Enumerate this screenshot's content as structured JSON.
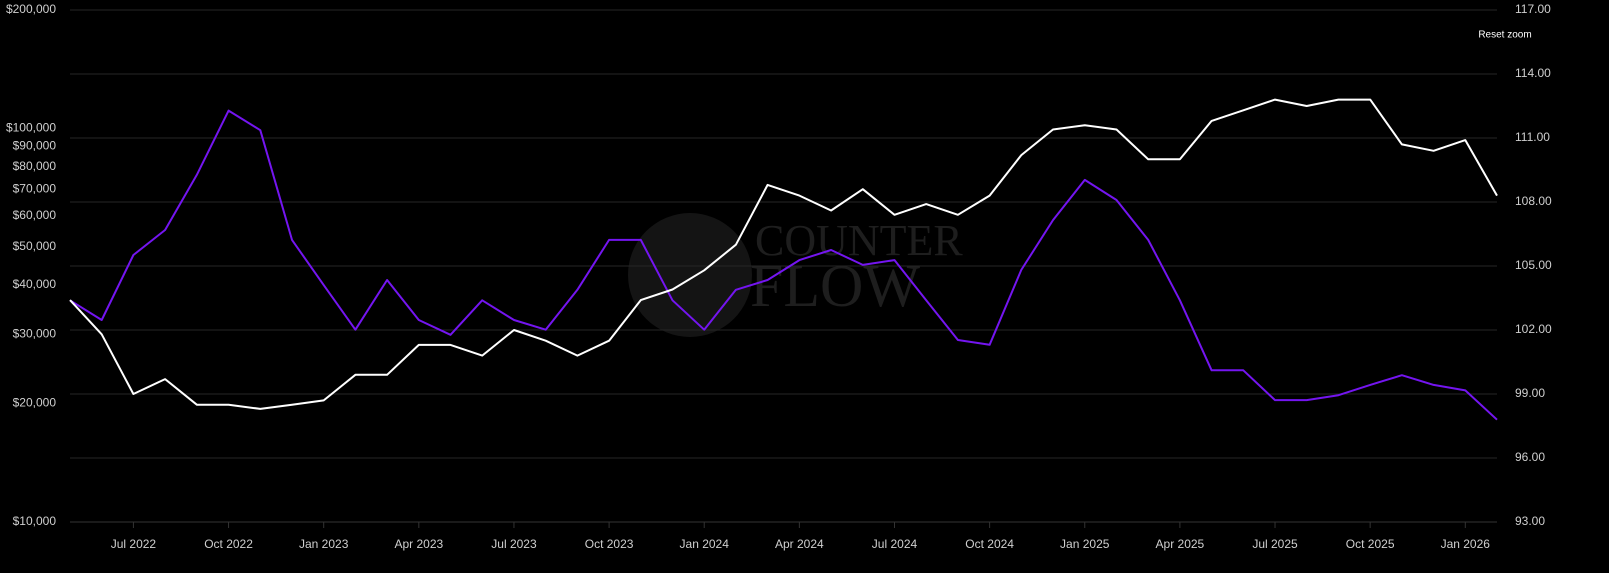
{
  "chart_data": {
    "type": "line",
    "x": [
      "2022-05",
      "2022-06",
      "2022-07",
      "2022-08",
      "2022-09",
      "2022-10",
      "2022-11",
      "2022-12",
      "2023-01",
      "2023-02",
      "2023-03",
      "2023-04",
      "2023-05",
      "2023-06",
      "2023-07",
      "2023-08",
      "2023-09",
      "2023-10",
      "2023-11",
      "2023-12",
      "2024-01",
      "2024-02",
      "2024-03",
      "2024-04",
      "2024-05",
      "2024-06",
      "2024-07",
      "2024-08",
      "2024-09",
      "2024-10",
      "2024-11",
      "2024-12",
      "2025-01",
      "2025-02",
      "2025-03",
      "2025-04",
      "2025-05",
      "2025-06",
      "2025-07",
      "2025-08",
      "2025-09",
      "2025-10",
      "2025-11",
      "2025-12",
      "2026-01",
      "2026-02"
    ],
    "xlim": [
      "2022-05",
      "2026-02"
    ],
    "xticks": [
      {
        "value": "2022-07",
        "label": "Jul 2022"
      },
      {
        "value": "2022-10",
        "label": "Oct 2022"
      },
      {
        "value": "2023-01",
        "label": "Jan 2023"
      },
      {
        "value": "2023-04",
        "label": "Apr 2023"
      },
      {
        "value": "2023-07",
        "label": "Jul 2023"
      },
      {
        "value": "2023-10",
        "label": "Oct 2023"
      },
      {
        "value": "2024-01",
        "label": "Jan 2024"
      },
      {
        "value": "2024-04",
        "label": "Apr 2024"
      },
      {
        "value": "2024-07",
        "label": "Jul 2024"
      },
      {
        "value": "2024-10",
        "label": "Oct 2024"
      },
      {
        "value": "2025-01",
        "label": "Jan 2025"
      },
      {
        "value": "2025-04",
        "label": "Apr 2025"
      },
      {
        "value": "2025-07",
        "label": "Jul 2025"
      },
      {
        "value": "2025-10",
        "label": "Oct 2025"
      },
      {
        "value": "2026-01",
        "label": "Jan 2026"
      }
    ],
    "y_scale": "log",
    "ylim": [
      10000,
      200000
    ],
    "yticks": [
      {
        "value": 10000,
        "label": "$10,000"
      },
      {
        "value": 20000,
        "label": "$20,000"
      },
      {
        "value": 30000,
        "label": "$30,000"
      },
      {
        "value": 40000,
        "label": "$40,000"
      },
      {
        "value": 50000,
        "label": "$50,000"
      },
      {
        "value": 60000,
        "label": "$60,000"
      },
      {
        "value": 70000,
        "label": "$70,000"
      },
      {
        "value": 80000,
        "label": "$80,000"
      },
      {
        "value": 90000,
        "label": "$90,000"
      },
      {
        "value": 100000,
        "label": "$100,000"
      },
      {
        "value": 200000,
        "label": "$200,000"
      }
    ],
    "y2lim": [
      93,
      117
    ],
    "y2ticks": [
      {
        "value": 93,
        "label": "93.00"
      },
      {
        "value": 96,
        "label": "96.00"
      },
      {
        "value": 99,
        "label": "99.00"
      },
      {
        "value": 102,
        "label": "102.00"
      },
      {
        "value": 105,
        "label": "105.00"
      },
      {
        "value": 108,
        "label": "108.00"
      },
      {
        "value": 111,
        "label": "111.00"
      },
      {
        "value": 114,
        "label": "114.00"
      },
      {
        "value": 117,
        "label": "117.00"
      }
    ],
    "grid": true,
    "series": [
      {
        "color": "#7415f0",
        "values": [
          36600,
          32600,
          47700,
          55200,
          76200,
          111000,
          99000,
          52100,
          40000,
          30800,
          41200,
          32600,
          29900,
          36600,
          32600,
          30800,
          38900,
          52100,
          52100,
          36600,
          30800,
          38900,
          41200,
          46300,
          49100,
          45000,
          46300,
          36600,
          29000,
          28200,
          43700,
          58500,
          74000,
          65800,
          52100,
          36600,
          24300,
          24300,
          20400,
          20400,
          21000,
          22300,
          23600,
          22300,
          21600,
          18200
        ]
      },
      {
        "color": "#ffffff",
        "axis": "y2",
        "values": [
          103.4,
          101.8,
          99.0,
          99.7,
          98.5,
          98.5,
          98.3,
          98.5,
          98.7,
          99.9,
          99.9,
          101.3,
          101.3,
          100.8,
          102.0,
          101.5,
          100.8,
          101.5,
          103.4,
          103.9,
          104.8,
          106.0,
          108.8,
          108.3,
          107.6,
          108.6,
          107.4,
          107.9,
          107.4,
          108.3,
          110.2,
          111.4,
          111.6,
          111.4,
          110.0,
          110.0,
          111.8,
          112.3,
          112.8,
          112.5,
          112.8,
          112.8,
          110.7,
          110.4,
          110.9,
          108.3
        ]
      }
    ],
    "watermark": [
      "COUNTER",
      "FLOW"
    ],
    "reset_zoom_label": "Reset zoom"
  }
}
